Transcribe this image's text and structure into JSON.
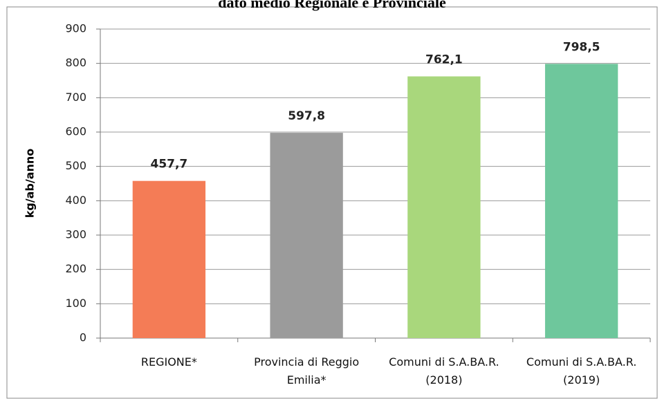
{
  "chart_data": {
    "type": "bar",
    "title": "dato medio Regionale e Provinciale",
    "y_label": "kg/ab/anno",
    "categories": [
      "REGIONE*",
      "Provincia di Reggio Emilia*",
      "Comuni di S.A.BA.R. (2018)",
      "Comuni di S.A.BA.R. (2019)"
    ],
    "values": [
      457.7,
      597.8,
      762.1,
      798.5
    ],
    "value_labels": [
      "457,7",
      "597,8",
      "762,1",
      "798,5"
    ],
    "colors": [
      "#f47c56",
      "#9b9b9b",
      "#a9d77c",
      "#6ec79c"
    ],
    "ylim": [
      0,
      900
    ],
    "yticks": [
      0,
      100,
      200,
      300,
      400,
      500,
      600,
      700,
      800,
      900
    ],
    "grid": true
  }
}
